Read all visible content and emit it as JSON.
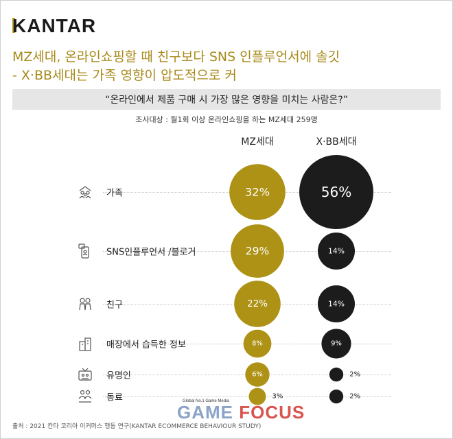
{
  "brand": "KANTAR",
  "title_line1": "MZ세대, 온라인쇼핑할 때 친구보다 SNS 인플루언서에 솔깃",
  "title_line2": "- X·BB세대는 가족 영향이 압도적으로 커",
  "question": "“온라인에서 제품 구매 시 가장 많은 영향을 미치는 사람은?”",
  "subtitle": "조사대상 : 월1회 이상 온라인쇼핑을 하는 MZ세대 259명",
  "footer": "출처 : 2021 칸타 코리아 이커머스 행동 연구(KANTAR ECOMMERCE BEHAVIOUR STUDY)",
  "watermark": {
    "small": "Global No.1 Game Media",
    "game": "GAME",
    "focus": "FOCUS"
  },
  "colors": {
    "mz": "#ad9216",
    "xbb": "#1c1c1c",
    "accent": "#b79b1f"
  },
  "row_icons": [
    "family-icon",
    "sns-phone-icon",
    "friends-icon",
    "store-icon",
    "tv-celebrity-icon",
    "coworker-icon"
  ],
  "chart_data": {
    "type": "bubble",
    "categories": [
      "가족",
      "SNS인플루언서 /블로거",
      "친구",
      "매장에서 습득한 정보",
      "유명인",
      "동료"
    ],
    "series": [
      {
        "name": "MZ세대",
        "values": [
          32,
          29,
          22,
          8,
          6,
          3
        ],
        "labels": [
          "32%",
          "29%",
          "22%",
          "8%",
          "6%",
          "3%"
        ]
      },
      {
        "name": "X·BB세대",
        "values": [
          56,
          14,
          14,
          9,
          2,
          2
        ],
        "labels": [
          "56%",
          "14%",
          "14%",
          "9%",
          "2%",
          "2%"
        ]
      }
    ],
    "unit": "%"
  }
}
